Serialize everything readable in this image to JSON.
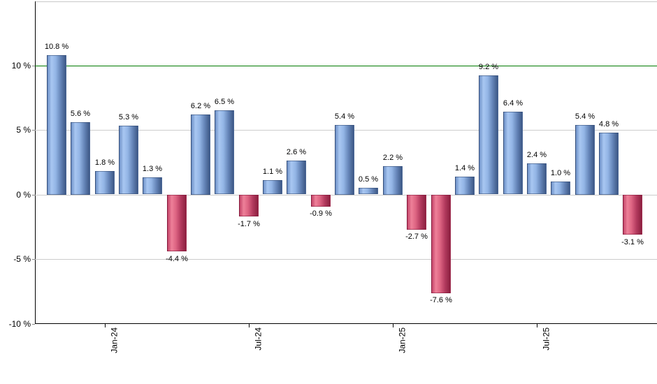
{
  "chart_data": {
    "type": "bar",
    "title": "",
    "xlabel": "",
    "ylabel": "",
    "grid": true,
    "legend": false,
    "ylim": [
      -10,
      15
    ],
    "values": [
      10.8,
      5.6,
      1.8,
      5.3,
      1.3,
      -4.4,
      6.2,
      6.5,
      -1.7,
      1.1,
      2.6,
      -0.9,
      5.4,
      0.5,
      2.2,
      -2.7,
      -7.6,
      1.4,
      9.2,
      6.4,
      2.4,
      1.0,
      5.4,
      4.8,
      -3.1
    ],
    "bar_labels": [
      "10.8 %",
      "5.6 %",
      "1.8 %",
      "5.3 %",
      "1.3 %",
      "-4.4 %",
      "6.2 %",
      "6.5 %",
      "-1.7 %",
      "1.1 %",
      "2.6 %",
      "-0.9 %",
      "5.4 %",
      "0.5 %",
      "2.2 %",
      "-2.7 %",
      "-7.6 %",
      "1.4 %",
      "9.2 %",
      "6.4 %",
      "2.4 %",
      "1.0 %",
      "5.4 %",
      "4.8 %",
      "-3.1 %"
    ],
    "y_ticks": [
      {
        "value": 10,
        "label": "10 %"
      },
      {
        "value": 5,
        "label": "5 %"
      },
      {
        "value": 0,
        "label": "0 %"
      },
      {
        "value": -5,
        "label": "-5 %"
      },
      {
        "value": -10,
        "label": "-10 %"
      }
    ],
    "x_ticks": [
      {
        "bar_index": 2,
        "label": "Jan-24"
      },
      {
        "bar_index": 8,
        "label": "Jul-24"
      },
      {
        "bar_index": 14,
        "label": "Jan-25"
      },
      {
        "bar_index": 20,
        "label": "Jul-25"
      }
    ],
    "reference_line": {
      "value": 10,
      "color": "#007a00"
    },
    "colors": {
      "positive_gradient": [
        "#6d90c6",
        "#a9c7f2",
        "#93b5e5",
        "#6585b8",
        "#3d5886"
      ],
      "negative_gradient": [
        "#c4466a",
        "#ee8099",
        "#dd6482",
        "#b23a5e",
        "#8c2040"
      ],
      "gridline": "#cccccc",
      "axis": "#000000",
      "frame_top": "#c8c8c8",
      "label_text": "#000000",
      "background": "#ffffff"
    }
  }
}
